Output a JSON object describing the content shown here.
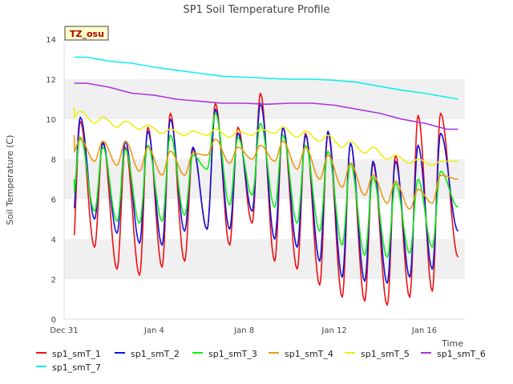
{
  "chart_data": {
    "type": "line",
    "title": "SP1 Soil Temperature Profile",
    "xlabel": "Time",
    "ylabel": "Soil Temperature (C)",
    "site_label": "TZ_osu",
    "x_unit": "days since Dec 31",
    "xlim": [
      0,
      17.8
    ],
    "ylim": [
      0,
      14
    ],
    "yticks": [
      0,
      2,
      4,
      6,
      8,
      10,
      12,
      14
    ],
    "xticks": [
      {
        "value": 0,
        "label": "Dec 31"
      },
      {
        "value": 4,
        "label": "Jan 4"
      },
      {
        "value": 8,
        "label": "Jan 8"
      },
      {
        "value": 12,
        "label": "Jan 12"
      },
      {
        "value": 16,
        "label": "Jan 16"
      }
    ],
    "grid": "horizontal bands",
    "legend_position": "bottom",
    "series": [
      {
        "name": "sp1_smT_1",
        "color": "#ee1111",
        "kind": "diurnal",
        "mins": [
          2.9,
          3.6,
          2.5,
          2.2,
          2.6,
          2.9,
          4.5,
          3.7,
          4.8,
          2.9,
          2.5,
          1.7,
          1.1,
          0.9,
          0.7,
          1.1,
          1.4
        ],
        "maxs": [
          9.9,
          8.9,
          8.6,
          9.6,
          10.3,
          8.5,
          10.8,
          9.6,
          11.3,
          9.6,
          9.3,
          9.3,
          8.8,
          7.8,
          8.2,
          10.2,
          10.3
        ],
        "x_start": 0.45,
        "x_end": 17.5,
        "v_start": 4.2,
        "v_end": 3.1
      },
      {
        "name": "sp1_smT_2",
        "color": "#1111dd",
        "kind": "diurnal",
        "mins": [
          4.4,
          5.0,
          4.3,
          3.8,
          3.7,
          4.4,
          4.5,
          4.5,
          5.4,
          4.0,
          3.6,
          2.9,
          2.1,
          1.9,
          1.8,
          2.1,
          2.5
        ],
        "maxs": [
          10.1,
          8.8,
          8.9,
          9.4,
          10.0,
          8.6,
          10.5,
          9.3,
          10.8,
          9.6,
          9.2,
          9.4,
          8.8,
          7.9,
          7.9,
          8.7,
          9.3
        ],
        "x_start": 0.45,
        "x_end": 17.5,
        "v_start": 5.6,
        "v_end": 4.4
      },
      {
        "name": "sp1_smT_3",
        "color": "#11ee11",
        "kind": "diurnal",
        "mins": [
          5.6,
          5.4,
          4.9,
          4.8,
          4.9,
          5.2,
          7.5,
          5.7,
          6.2,
          5.6,
          4.8,
          4.4,
          3.7,
          3.2,
          3.1,
          3.3,
          3.6
        ],
        "maxs": [
          9.1,
          8.6,
          8.5,
          8.7,
          9.2,
          8.2,
          10.3,
          9.1,
          9.8,
          9.2,
          8.7,
          8.4,
          7.8,
          7.1,
          6.8,
          7.0,
          7.4
        ],
        "x_start": 0.45,
        "x_end": 17.5,
        "v_start": 7.0,
        "v_end": 5.6
      },
      {
        "name": "sp1_smT_4",
        "color": "#ee9911",
        "kind": "diurnal",
        "mins": [
          8.2,
          7.9,
          7.7,
          7.4,
          7.2,
          7.2,
          8.2,
          7.8,
          8.0,
          7.9,
          7.5,
          7.0,
          6.6,
          6.2,
          5.8,
          5.5,
          5.8
        ],
        "maxs": [
          9.0,
          8.9,
          8.9,
          8.6,
          8.4,
          8.3,
          9.0,
          8.6,
          8.7,
          8.9,
          8.6,
          8.2,
          7.8,
          7.2,
          6.9,
          6.5,
          7.2
        ],
        "x_start": 0.45,
        "x_end": 17.5,
        "v_start": 9.2,
        "v_end": 7.0
      },
      {
        "name": "sp1_smT_5",
        "color": "#eeee11",
        "kind": "diurnal",
        "mins": [
          10.0,
          9.8,
          9.6,
          9.5,
          9.3,
          9.2,
          9.2,
          9.1,
          9.2,
          9.3,
          9.1,
          8.9,
          8.6,
          8.3,
          8.0,
          7.8,
          7.7
        ],
        "maxs": [
          10.4,
          10.1,
          9.9,
          9.7,
          9.5,
          9.4,
          9.5,
          9.4,
          9.5,
          9.6,
          9.4,
          9.2,
          8.9,
          8.6,
          8.2,
          8.0,
          7.9
        ],
        "x_start": 0.45,
        "x_end": 17.5,
        "v_start": 10.6,
        "v_end": 7.9
      },
      {
        "name": "sp1_smT_6",
        "color": "#aa33dd",
        "kind": "smooth",
        "points": [
          [
            0.45,
            11.8
          ],
          [
            1,
            11.8
          ],
          [
            2,
            11.6
          ],
          [
            3,
            11.3
          ],
          [
            4,
            11.2
          ],
          [
            5,
            11.0
          ],
          [
            6,
            10.9
          ],
          [
            7,
            10.8
          ],
          [
            8,
            10.8
          ],
          [
            9,
            10.75
          ],
          [
            10,
            10.8
          ],
          [
            11,
            10.8
          ],
          [
            12,
            10.7
          ],
          [
            13,
            10.5
          ],
          [
            14,
            10.3
          ],
          [
            15,
            10.0
          ],
          [
            16,
            9.8
          ],
          [
            17,
            9.5
          ],
          [
            17.5,
            9.5
          ]
        ]
      },
      {
        "name": "sp1_smT_7",
        "color": "#11eeee",
        "kind": "smooth",
        "points": [
          [
            0.45,
            13.1
          ],
          [
            1,
            13.1
          ],
          [
            2,
            12.9
          ],
          [
            3,
            12.8
          ],
          [
            4,
            12.6
          ],
          [
            5,
            12.45
          ],
          [
            6,
            12.3
          ],
          [
            7,
            12.15
          ],
          [
            8,
            12.1
          ],
          [
            9,
            12.05
          ],
          [
            10,
            12.0
          ],
          [
            11,
            12.0
          ],
          [
            12,
            11.95
          ],
          [
            13,
            11.85
          ],
          [
            14,
            11.65
          ],
          [
            15,
            11.45
          ],
          [
            16,
            11.3
          ],
          [
            17,
            11.1
          ],
          [
            17.5,
            11.0
          ]
        ]
      }
    ]
  }
}
